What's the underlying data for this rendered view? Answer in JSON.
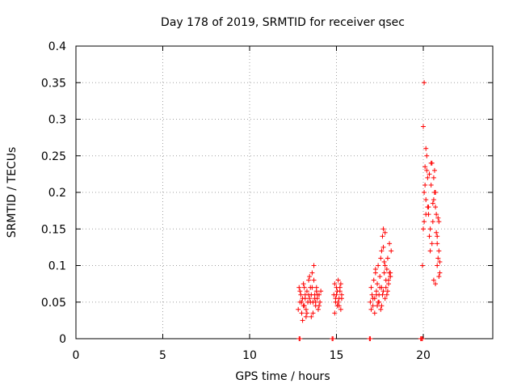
{
  "chart_data": {
    "type": "scatter",
    "title": "Day 178 of 2019, SRMTID for receiver qsec",
    "xlabel": "GPS time / hours",
    "ylabel": "SRMTID / TECUs",
    "xlim": [
      0,
      24
    ],
    "ylim": [
      0,
      0.4
    ],
    "x_ticks": [
      0,
      5,
      10,
      15,
      20
    ],
    "x_tick_labels": [
      "0",
      "5",
      "10",
      "15",
      "20"
    ],
    "y_ticks": [
      0,
      0.05,
      0.1,
      0.15,
      0.2,
      0.25,
      0.3,
      0.35,
      0.4
    ],
    "y_tick_labels": [
      "0",
      "0.05",
      "0.1",
      "0.15",
      "0.2",
      "0.25",
      "0.3",
      "0.35",
      "0.4"
    ],
    "grid": true,
    "marker": "plus",
    "color": "#ff0000",
    "series": [
      {
        "name": "SRMTID",
        "x": [
          12.8,
          12.85,
          12.9,
          12.95,
          13.0,
          13.05,
          13.1,
          13.15,
          13.2,
          13.25,
          13.3,
          13.35,
          13.4,
          13.45,
          13.5,
          13.55,
          13.6,
          13.65,
          13.7,
          13.75,
          13.8,
          13.85,
          13.9,
          13.95,
          14.0,
          14.05,
          14.1,
          12.9,
          13.0,
          13.1,
          13.2,
          13.3,
          13.4,
          13.5,
          13.6,
          13.7,
          13.8,
          13.9,
          14.0,
          13.05,
          13.25,
          13.45,
          13.65,
          13.85,
          13.15,
          13.55,
          13.75,
          14.85,
          14.9,
          14.95,
          15.0,
          15.05,
          15.1,
          15.15,
          15.2,
          15.25,
          15.3,
          14.9,
          15.0,
          15.1,
          15.2,
          15.3,
          15.05,
          15.15,
          14.95,
          15.25,
          16.95,
          17.0,
          17.05,
          17.1,
          17.15,
          17.2,
          17.25,
          17.3,
          17.35,
          17.4,
          17.45,
          17.5,
          17.55,
          17.6,
          17.65,
          17.7,
          17.75,
          17.8,
          17.85,
          17.9,
          17.95,
          18.0,
          18.05,
          18.1,
          18.15,
          17.0,
          17.1,
          17.2,
          17.3,
          17.4,
          17.5,
          17.6,
          17.7,
          17.8,
          17.9,
          18.0,
          18.1,
          17.25,
          17.45,
          17.65,
          17.85,
          17.55,
          17.75,
          17.95,
          17.35,
          17.6,
          17.7,
          17.8,
          18.05,
          18.1,
          19.95,
          20.0,
          20.05,
          20.1,
          20.15,
          20.2,
          20.25,
          20.3,
          20.35,
          20.4,
          20.45,
          20.5,
          20.55,
          20.6,
          20.65,
          20.7,
          20.75,
          20.8,
          20.85,
          20.9,
          20.95,
          20.0,
          20.05,
          20.1,
          20.15,
          20.2,
          20.3,
          20.4,
          20.5,
          20.6,
          20.7,
          20.8,
          20.9,
          20.05,
          20.25,
          20.45,
          20.65,
          20.85,
          20.15,
          20.35,
          20.55,
          20.75,
          20.95,
          20.6,
          20.7,
          20.8,
          20.9,
          12.85,
          12.9,
          14.75,
          14.8,
          16.9,
          16.95,
          19.85,
          19.9,
          19.95
        ],
        "y": [
          0.04,
          0.07,
          0.05,
          0.06,
          0.035,
          0.055,
          0.075,
          0.045,
          0.06,
          0.03,
          0.065,
          0.05,
          0.08,
          0.055,
          0.07,
          0.06,
          0.09,
          0.05,
          0.1,
          0.06,
          0.045,
          0.07,
          0.055,
          0.04,
          0.06,
          0.05,
          0.065,
          0.065,
          0.05,
          0.045,
          0.055,
          0.035,
          0.06,
          0.05,
          0.07,
          0.08,
          0.05,
          0.06,
          0.045,
          0.025,
          0.04,
          0.085,
          0.035,
          0.065,
          0.07,
          0.03,
          0.055,
          0.06,
          0.075,
          0.05,
          0.07,
          0.045,
          0.08,
          0.055,
          0.065,
          0.04,
          0.06,
          0.035,
          0.06,
          0.05,
          0.07,
          0.055,
          0.065,
          0.045,
          0.055,
          0.075,
          0.05,
          0.07,
          0.06,
          0.045,
          0.08,
          0.055,
          0.09,
          0.065,
          0.075,
          0.1,
          0.06,
          0.085,
          0.11,
          0.12,
          0.14,
          0.15,
          0.09,
          0.1,
          0.08,
          0.095,
          0.11,
          0.075,
          0.13,
          0.09,
          0.12,
          0.04,
          0.055,
          0.035,
          0.06,
          0.05,
          0.07,
          0.045,
          0.065,
          0.055,
          0.06,
          0.08,
          0.085,
          0.095,
          0.05,
          0.06,
          0.07,
          0.04,
          0.105,
          0.065,
          0.045,
          0.07,
          0.125,
          0.145,
          0.09,
          0.085,
          0.1,
          0.15,
          0.2,
          0.235,
          0.17,
          0.25,
          0.22,
          0.18,
          0.14,
          0.12,
          0.21,
          0.24,
          0.16,
          0.19,
          0.23,
          0.2,
          0.17,
          0.13,
          0.11,
          0.16,
          0.09,
          0.29,
          0.35,
          0.21,
          0.19,
          0.23,
          0.17,
          0.15,
          0.13,
          0.22,
          0.18,
          0.1,
          0.12,
          0.16,
          0.18,
          0.24,
          0.2,
          0.165,
          0.26,
          0.225,
          0.185,
          0.145,
          0.105,
          0.08,
          0.075,
          0.14,
          0.085,
          0,
          0,
          0,
          0,
          0,
          0,
          0,
          0,
          0
        ]
      }
    ]
  }
}
